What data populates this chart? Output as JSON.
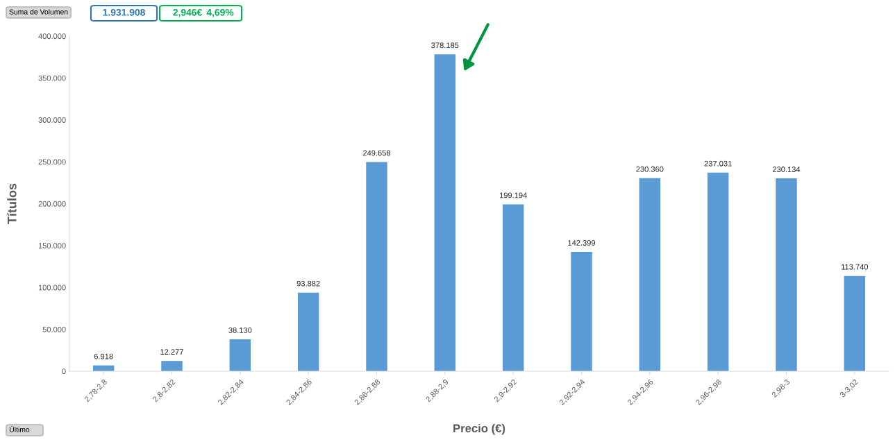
{
  "chart_data": {
    "type": "bar",
    "xlabel": "Precio (€)",
    "ylabel": "Títulos",
    "categories": [
      "2,78-2,8",
      "2,8-2,82",
      "2,82-2,84",
      "2,84-2,86",
      "2,86-2,88",
      "2,88-2,9",
      "2,9-2,92",
      "2,92-2,94",
      "2,94-2,96",
      "2,96-2,98",
      "2,98-3",
      "3-3,02"
    ],
    "values": [
      6918,
      12277,
      38130,
      93882,
      249658,
      378185,
      199194,
      142399,
      230360,
      237031,
      230134,
      113740
    ],
    "value_labels": [
      "6.918",
      "12.277",
      "38.130",
      "93.882",
      "249.658",
      "378.185",
      "199.194",
      "142.399",
      "230.360",
      "237.031",
      "230.134",
      "113.740"
    ],
    "color": "#5b9bd5",
    "ylim": [
      0,
      400000
    ],
    "yticks": [
      0,
      {
        "value": 50000,
        "label": "50.000"
      },
      {
        "value": 100000,
        "label": "100.000"
      },
      {
        "value": 150000,
        "label": "150.000"
      },
      {
        "value": 200000,
        "label": "200.000"
      },
      {
        "value": 250000,
        "label": "250.000"
      },
      {
        "value": 300000,
        "label": "300.000"
      },
      {
        "value": 350000,
        "label": "350.000"
      },
      {
        "value": 400000,
        "label": "400.000"
      }
    ],
    "grid": false,
    "legend": false,
    "annotations": [
      "Suma de Volumen",
      "1.931.908",
      "2,946€",
      "4,69%",
      "Último"
    ]
  }
}
